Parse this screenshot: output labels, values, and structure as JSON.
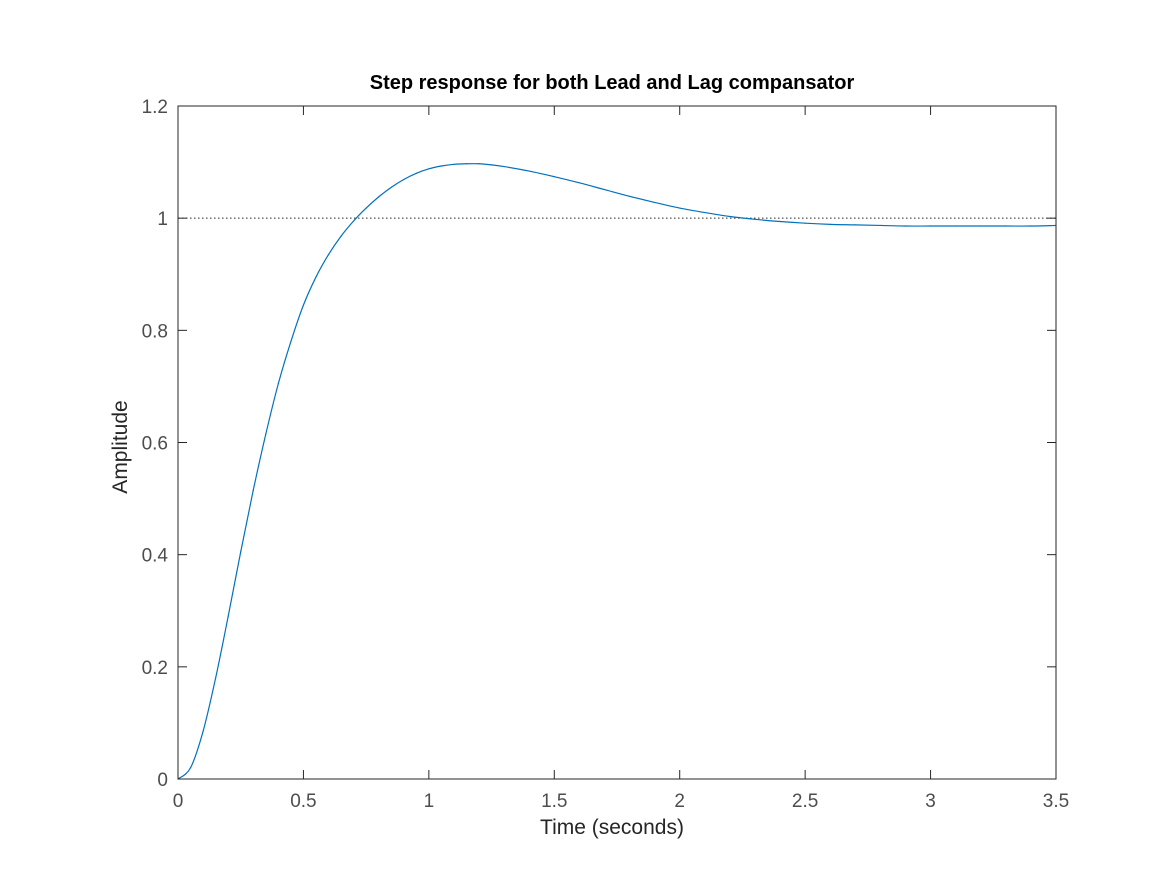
{
  "chart_data": {
    "type": "line",
    "title": "Step response for both Lead and Lag compansator",
    "xlabel": "Time (seconds)",
    "ylabel": "Amplitude",
    "xlim": [
      0,
      3.5
    ],
    "ylim": [
      0,
      1.2
    ],
    "xticks": [
      0,
      0.5,
      1,
      1.5,
      2,
      2.5,
      3,
      3.5
    ],
    "xtick_labels": [
      "0",
      "0.5",
      "1",
      "1.5",
      "2",
      "2.5",
      "3",
      "3.5"
    ],
    "yticks": [
      0,
      0.2,
      0.4,
      0.6,
      0.8,
      1,
      1.2
    ],
    "ytick_labels": [
      "0",
      "0.2",
      "0.4",
      "0.6",
      "0.8",
      "1",
      "1.2"
    ],
    "grid": false,
    "reference_line": {
      "y": 1,
      "style": "dotted",
      "color": "#262626"
    },
    "series": [
      {
        "color": "#0072bd",
        "x": [
          0,
          0.05,
          0.1,
          0.15,
          0.2,
          0.25,
          0.3,
          0.35,
          0.4,
          0.45,
          0.5,
          0.55,
          0.6,
          0.65,
          0.7,
          0.75,
          0.8,
          0.85,
          0.9,
          0.95,
          1.0,
          1.05,
          1.1,
          1.15,
          1.2,
          1.25,
          1.3,
          1.4,
          1.5,
          1.6,
          1.7,
          1.8,
          1.9,
          2.0,
          2.1,
          2.2,
          2.3,
          2.4,
          2.5,
          2.6,
          2.7,
          2.8,
          2.9,
          3.0,
          3.1,
          3.2,
          3.3,
          3.4,
          3.5
        ],
        "y": [
          0,
          0.02,
          0.085,
          0.18,
          0.29,
          0.405,
          0.515,
          0.615,
          0.705,
          0.78,
          0.845,
          0.895,
          0.935,
          0.968,
          0.995,
          1.018,
          1.038,
          1.055,
          1.069,
          1.08,
          1.088,
          1.093,
          1.096,
          1.097,
          1.097,
          1.095,
          1.092,
          1.084,
          1.074,
          1.063,
          1.051,
          1.039,
          1.028,
          1.018,
          1.01,
          1.003,
          0.998,
          0.994,
          0.991,
          0.989,
          0.988,
          0.987,
          0.986,
          0.986,
          0.986,
          0.986,
          0.986,
          0.986,
          0.987
        ]
      }
    ]
  }
}
